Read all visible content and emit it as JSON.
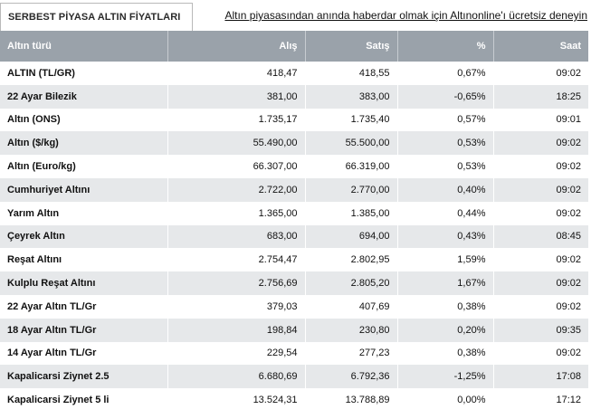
{
  "header": {
    "tab_title": "SERBEST PİYASA ALTIN FİYATLARI",
    "promo_link": "Altın piyasasından anında haberdar olmak için Altınonline'ı ücretsiz deneyin"
  },
  "table": {
    "columns": [
      "Altın türü",
      "Alış",
      "Satış",
      "%",
      "Saat"
    ],
    "rows": [
      {
        "name": "ALTIN (TL/GR)",
        "alis": "418,47",
        "satis": "418,55",
        "pct": "0,67%",
        "saat": "09:02"
      },
      {
        "name": "22 Ayar Bilezik",
        "alis": "381,00",
        "satis": "383,00",
        "pct": "-0,65%",
        "saat": "18:25"
      },
      {
        "name": "Altın (ONS)",
        "alis": "1.735,17",
        "satis": "1.735,40",
        "pct": "0,57%",
        "saat": "09:01"
      },
      {
        "name": "Altın ($/kg)",
        "alis": "55.490,00",
        "satis": "55.500,00",
        "pct": "0,53%",
        "saat": "09:02"
      },
      {
        "name": "Altın (Euro/kg)",
        "alis": "66.307,00",
        "satis": "66.319,00",
        "pct": "0,53%",
        "saat": "09:02"
      },
      {
        "name": "Cumhuriyet Altını",
        "alis": "2.722,00",
        "satis": "2.770,00",
        "pct": "0,40%",
        "saat": "09:02"
      },
      {
        "name": "Yarım Altın",
        "alis": "1.365,00",
        "satis": "1.385,00",
        "pct": "0,44%",
        "saat": "09:02"
      },
      {
        "name": "Çeyrek Altın",
        "alis": "683,00",
        "satis": "694,00",
        "pct": "0,43%",
        "saat": "08:45"
      },
      {
        "name": "Reşat Altını",
        "alis": "2.754,47",
        "satis": "2.802,95",
        "pct": "1,59%",
        "saat": "09:02"
      },
      {
        "name": "Kulplu Reşat Altını",
        "alis": "2.756,69",
        "satis": "2.805,20",
        "pct": "1,67%",
        "saat": "09:02"
      },
      {
        "name": "22 Ayar Altın TL/Gr",
        "alis": "379,03",
        "satis": "407,69",
        "pct": "0,38%",
        "saat": "09:02"
      },
      {
        "name": "18 Ayar Altın TL/Gr",
        "alis": "198,84",
        "satis": "230,80",
        "pct": "0,20%",
        "saat": "09:35"
      },
      {
        "name": "14 Ayar Altın TL/Gr",
        "alis": "229,54",
        "satis": "277,23",
        "pct": "0,38%",
        "saat": "09:02"
      },
      {
        "name": "Kapalicarsi Ziynet 2.5",
        "alis": "6.680,69",
        "satis": "6.792,36",
        "pct": "-1,25%",
        "saat": "17:08"
      },
      {
        "name": "Kapalicarsi Ziynet 5 li",
        "alis": "13.524,31",
        "satis": "13.788,89",
        "pct": "0,00%",
        "saat": "17:12"
      }
    ]
  }
}
